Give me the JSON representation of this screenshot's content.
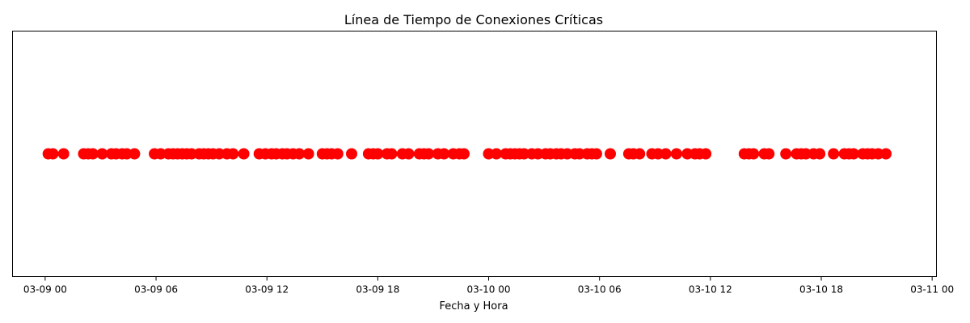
{
  "chart_data": {
    "type": "scatter",
    "title": "Línea de Tiempo de Conexiones Críticas",
    "xlabel": "Fecha y Hora",
    "ylabel": "",
    "x_axis_type": "datetime",
    "xlim": [
      "2025-03-08T22:14",
      "2025-03-11T00:14"
    ],
    "x_ticks": [
      "2025-03-09T00:00",
      "2025-03-09T06:00",
      "2025-03-09T12:00",
      "2025-03-09T18:00",
      "2025-03-10T00:00",
      "2025-03-10T06:00",
      "2025-03-10T12:00",
      "2025-03-10T18:00",
      "2025-03-11T00:00"
    ],
    "x_tick_labels": [
      "03-09 00",
      "03-09 06",
      "03-09 12",
      "03-09 18",
      "03-10 00",
      "03-10 06",
      "03-10 12",
      "03-10 18",
      "03-11 00"
    ],
    "y_ticks_visible": false,
    "grid": false,
    "marker_color": "#ff0000",
    "marker": "circle",
    "series": [
      {
        "y": 1,
        "x": [
          "2025-03-09T00:10",
          "2025-03-09T00:25",
          "2025-03-09T01:00",
          "2025-03-09T02:05",
          "2025-03-09T02:20",
          "2025-03-09T02:35",
          "2025-03-09T03:05",
          "2025-03-09T03:35",
          "2025-03-09T03:50",
          "2025-03-09T04:10",
          "2025-03-09T04:25",
          "2025-03-09T04:50",
          "2025-03-09T05:55",
          "2025-03-09T06:15",
          "2025-03-09T06:40",
          "2025-03-09T06:55",
          "2025-03-09T07:10",
          "2025-03-09T07:25",
          "2025-03-09T07:40",
          "2025-03-09T07:55",
          "2025-03-09T08:20",
          "2025-03-09T08:35",
          "2025-03-09T08:50",
          "2025-03-09T09:05",
          "2025-03-09T09:25",
          "2025-03-09T09:50",
          "2025-03-09T10:10",
          "2025-03-09T10:45",
          "2025-03-09T11:35",
          "2025-03-09T11:55",
          "2025-03-09T12:15",
          "2025-03-09T12:30",
          "2025-03-09T12:50",
          "2025-03-09T13:05",
          "2025-03-09T13:25",
          "2025-03-09T13:45",
          "2025-03-09T14:15",
          "2025-03-09T15:00",
          "2025-03-09T15:15",
          "2025-03-09T15:30",
          "2025-03-09T15:50",
          "2025-03-09T16:35",
          "2025-03-09T17:30",
          "2025-03-09T17:45",
          "2025-03-09T18:00",
          "2025-03-09T18:30",
          "2025-03-09T18:45",
          "2025-03-09T19:20",
          "2025-03-09T19:40",
          "2025-03-09T20:15",
          "2025-03-09T20:30",
          "2025-03-09T20:45",
          "2025-03-09T21:15",
          "2025-03-09T21:35",
          "2025-03-09T22:05",
          "2025-03-09T22:25",
          "2025-03-09T22:40",
          "2025-03-10T00:00",
          "2025-03-10T00:25",
          "2025-03-10T00:55",
          "2025-03-10T01:10",
          "2025-03-10T01:25",
          "2025-03-10T01:40",
          "2025-03-10T01:55",
          "2025-03-10T02:20",
          "2025-03-10T02:40",
          "2025-03-10T03:05",
          "2025-03-10T03:20",
          "2025-03-10T03:40",
          "2025-03-10T03:55",
          "2025-03-10T04:15",
          "2025-03-10T04:40",
          "2025-03-10T04:55",
          "2025-03-10T05:20",
          "2025-03-10T05:35",
          "2025-03-10T05:50",
          "2025-03-10T06:35",
          "2025-03-10T07:35",
          "2025-03-10T07:50",
          "2025-03-10T08:10",
          "2025-03-10T08:50",
          "2025-03-10T09:10",
          "2025-03-10T09:35",
          "2025-03-10T10:10",
          "2025-03-10T10:45",
          "2025-03-10T11:10",
          "2025-03-10T11:25",
          "2025-03-10T11:45",
          "2025-03-10T13:50",
          "2025-03-10T14:05",
          "2025-03-10T14:20",
          "2025-03-10T14:55",
          "2025-03-10T15:10",
          "2025-03-10T16:05",
          "2025-03-10T16:40",
          "2025-03-10T16:55",
          "2025-03-10T17:10",
          "2025-03-10T17:35",
          "2025-03-10T17:55",
          "2025-03-10T18:40",
          "2025-03-10T19:15",
          "2025-03-10T19:30",
          "2025-03-10T19:45",
          "2025-03-10T20:15",
          "2025-03-10T20:30",
          "2025-03-10T20:45",
          "2025-03-10T21:05",
          "2025-03-10T21:30"
        ]
      }
    ]
  }
}
